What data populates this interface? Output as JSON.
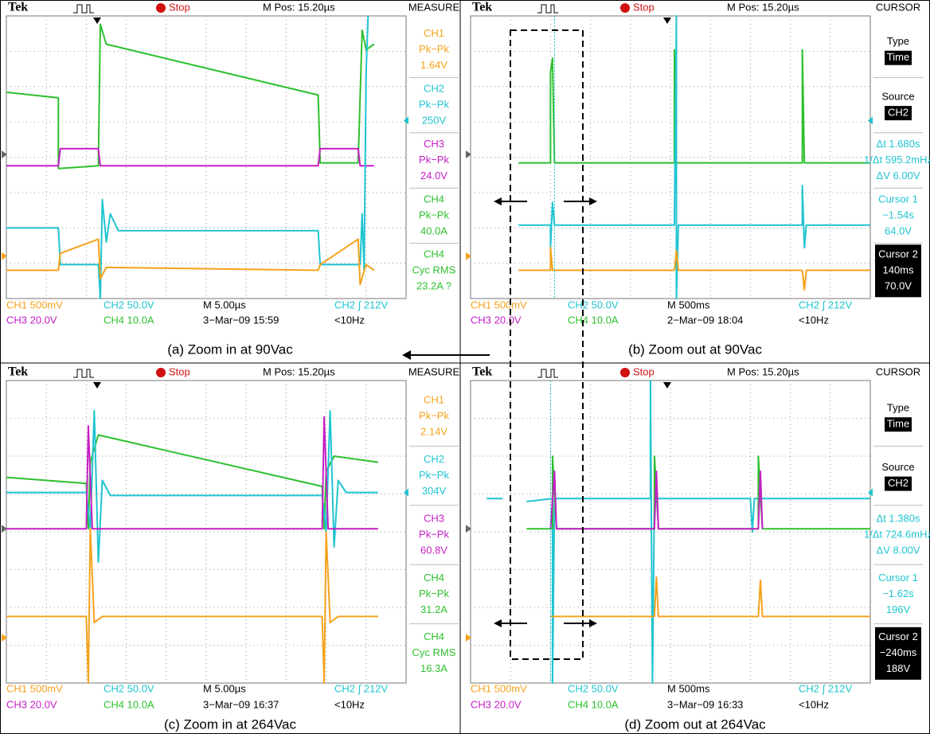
{
  "figure": {
    "panels": [
      {
        "brand": "Tek",
        "state": "Stop",
        "position": "M Pos: 15.20µs",
        "menu_title": "MEASURE",
        "menu": [
          [
            "CH1",
            "Pk−Pk",
            "1.64V"
          ],
          [
            "CH2",
            "Pk−Pk",
            "250V"
          ],
          [
            "CH3",
            "Pk−Pk",
            "24.0V"
          ],
          [
            "CH4",
            "Pk−Pk",
            "40.0A"
          ],
          [
            "CH4",
            "Cyc RMS",
            "23.2A ?"
          ]
        ],
        "status": [
          [
            "CH1 500mV",
            "CH2 50.0V",
            "M 5.00µs",
            "CH2 ∫ 212V"
          ],
          [
            "CH3 20.0V",
            "CH4 10.0A",
            "3−Mar−09 15:59",
            "<10Hz"
          ]
        ],
        "caption": "(a) Zoom in at 90Vac"
      },
      {
        "brand": "Tek",
        "state": "Stop",
        "position": "M Pos: 15.20µs",
        "menu_title": "CURSOR",
        "menu": [
          [
            "Type",
            "Time"
          ],
          [
            "Source",
            "CH2"
          ],
          [
            "Δt 1.680s",
            "1/Δt 595.2mHz",
            "ΔV 6.00V"
          ],
          [
            "Cursor 1",
            "−1.54s",
            "64.0V"
          ],
          [
            "Cursor 2",
            "140ms",
            "70.0V"
          ]
        ],
        "status": [
          [
            "CH1 500mV",
            "CH2 50.0V",
            "M 500ms",
            "CH2 ∫ 212V"
          ],
          [
            "CH3 20.0V",
            "CH4 10.0A",
            "2−Mar−09 18:04",
            "<10Hz"
          ]
        ],
        "caption": "(b) Zoom out at 90Vac"
      },
      {
        "brand": "Tek",
        "state": "Stop",
        "position": "M Pos: 15.20µs",
        "menu_title": "MEASURE",
        "menu": [
          [
            "CH1",
            "Pk−Pk",
            "2.14V"
          ],
          [
            "CH2",
            "Pk−Pk",
            "304V"
          ],
          [
            "CH3",
            "Pk−Pk",
            "60.8V"
          ],
          [
            "CH4",
            "Pk−Pk",
            "31.2A"
          ],
          [
            "CH4",
            "Cyc RMS",
            "16.3A"
          ]
        ],
        "status": [
          [
            "CH1 500mV",
            "CH2 50.0V",
            "M 5.00µs",
            "CH2 ∫ 212V"
          ],
          [
            "CH3 20.0V",
            "CH4 10.0A",
            "3−Mar−09 16:37",
            "<10Hz"
          ]
        ],
        "caption": "(c) Zoom in at 264Vac"
      },
      {
        "brand": "Tek",
        "state": "Stop",
        "position": "M Pos: 15.20µs",
        "menu_title": "CURSOR",
        "menu": [
          [
            "Type",
            "Time"
          ],
          [
            "Source",
            "CH2"
          ],
          [
            "Δt 1.380s",
            "1/Δt 724.6mHz",
            "ΔV 8.00V"
          ],
          [
            "Cursor 1",
            "−1.62s",
            "196V"
          ],
          [
            "Cursor 2",
            "−240ms",
            "188V"
          ]
        ],
        "status": [
          [
            "CH1 500mV",
            "CH2 50.0V",
            "M 500ms",
            "CH2 ∫ 212V"
          ],
          [
            "CH3 20.0V",
            "CH4 10.0A",
            "3−Mar−09 16:33",
            "<10Hz"
          ]
        ],
        "caption": "(d) Zoom out at 264Vac"
      }
    ]
  }
}
